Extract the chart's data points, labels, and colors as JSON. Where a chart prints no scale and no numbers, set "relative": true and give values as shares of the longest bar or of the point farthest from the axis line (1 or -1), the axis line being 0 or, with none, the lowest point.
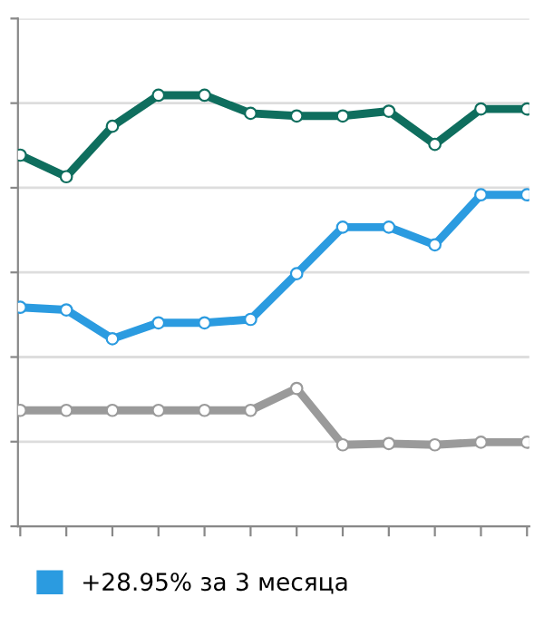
{
  "chart_data": {
    "type": "line",
    "relative": true,
    "categories": [
      null,
      null,
      null,
      null,
      null,
      null,
      null,
      null,
      null,
      null,
      null,
      null
    ],
    "series": [
      {
        "color": "#0f6e5e",
        "values": [
          0.861,
          0.811,
          0.928,
          1,
          1,
          0.958,
          0.952,
          0.952,
          0.963,
          0.886,
          0.968,
          0.968
        ]
      },
      {
        "name": "+28.95% за 3 месяца",
        "color": "#2b9be0",
        "values": [
          0.508,
          0.502,
          0.435,
          0.472,
          0.472,
          0.48,
          0.586,
          0.694,
          0.694,
          0.653,
          0.769,
          0.769
        ]
      },
      {
        "color": "#9a9a9a",
        "values": [
          0.269,
          0.269,
          0.269,
          0.269,
          0.269,
          0.269,
          0.32,
          0.189,
          0.192,
          0.189,
          0.195,
          0.195
        ]
      }
    ],
    "grid": "y",
    "legend": "bottom",
    "marker": "circle",
    "line_style": "solid"
  }
}
